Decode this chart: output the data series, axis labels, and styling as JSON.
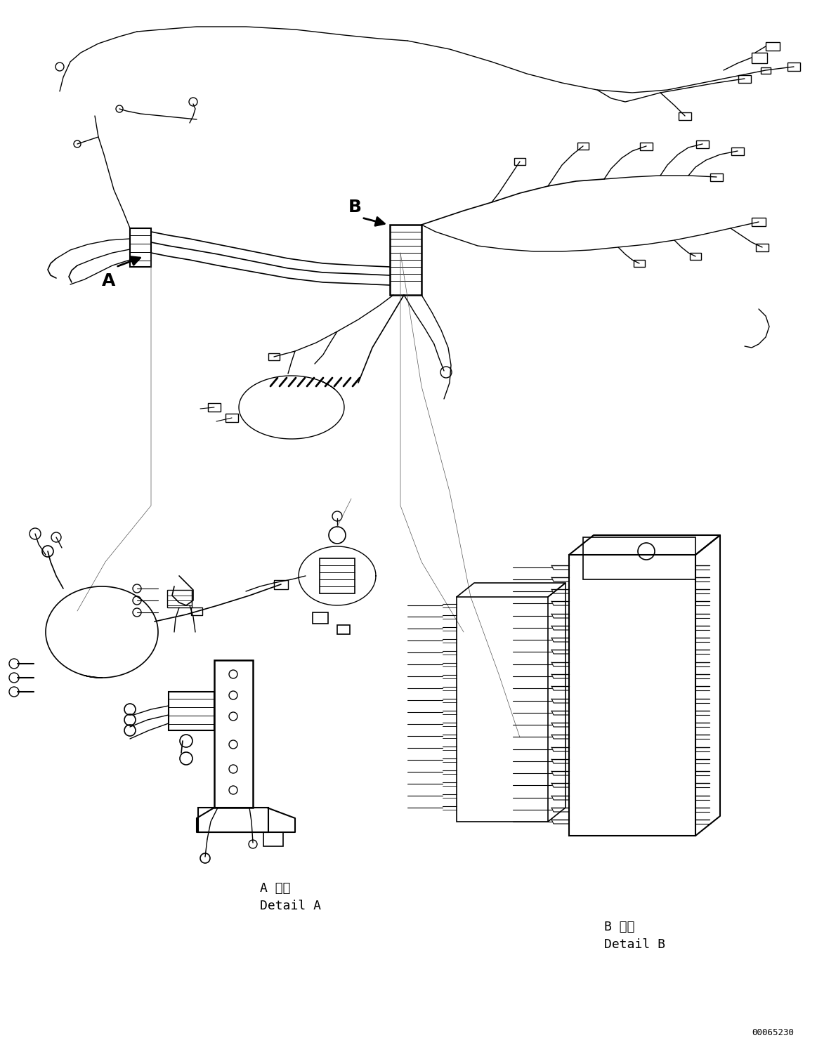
{
  "background_color": "#ffffff",
  "figure_width": 11.63,
  "figure_height": 14.88,
  "dpi": 100,
  "label_A": "A",
  "label_B": "B",
  "detail_A_ja": "A 詳細",
  "detail_A_en": "Detail A",
  "detail_B_ja": "B 詳細",
  "detail_B_en": "Detail B",
  "doc_number": "00065230",
  "line_color": "#000000",
  "line_width": 1.2
}
